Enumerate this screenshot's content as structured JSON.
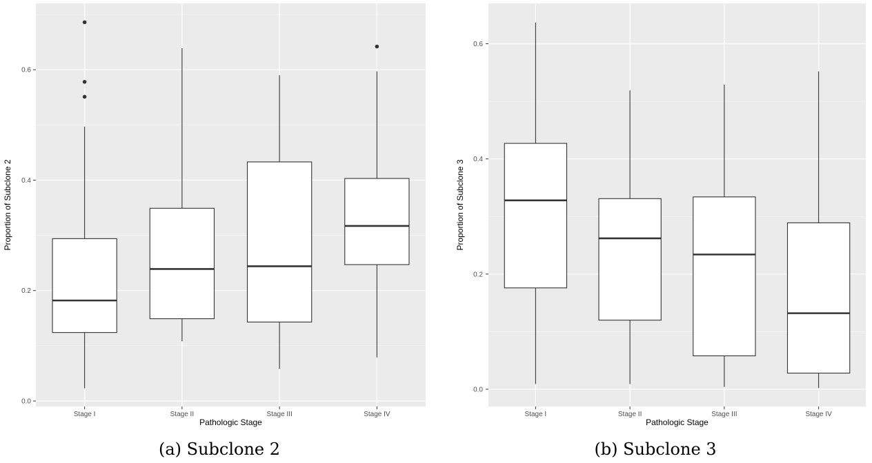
{
  "colors": {
    "panel_background": "#ebebeb",
    "grid_major": "#ffffff",
    "box_fill": "#ffffff",
    "box_stroke": "#333333",
    "tick_text": "#4d4d4d"
  },
  "chart_data": [
    {
      "type": "boxplot",
      "caption": "(a) Subclone 2",
      "xlabel": "Pathologic Stage",
      "ylabel": "Proportion of Subclone 2",
      "categories": [
        "Stage I",
        "Stage II",
        "Stage III",
        "Stage IV"
      ],
      "ylim": [
        -0.01,
        0.72
      ],
      "yticks": [
        0.0,
        0.2,
        0.4,
        0.6
      ],
      "ytick_labels": [
        "0.0",
        "0.2",
        "0.4",
        "0.6"
      ],
      "grid": true,
      "boxes": [
        {
          "category": "Stage I",
          "whisker_low": 0.023,
          "q1": 0.124,
          "median": 0.182,
          "q3": 0.294,
          "whisker_high": 0.497,
          "outliers": [
            0.551,
            0.578,
            0.686
          ]
        },
        {
          "category": "Stage II",
          "whisker_low": 0.108,
          "q1": 0.149,
          "median": 0.239,
          "q3": 0.349,
          "whisker_high": 0.639,
          "outliers": []
        },
        {
          "category": "Stage III",
          "whisker_low": 0.058,
          "q1": 0.143,
          "median": 0.244,
          "q3": 0.433,
          "whisker_high": 0.59,
          "outliers": []
        },
        {
          "category": "Stage IV",
          "whisker_low": 0.079,
          "q1": 0.247,
          "median": 0.317,
          "q3": 0.403,
          "whisker_high": 0.597,
          "outliers": [
            0.642
          ]
        }
      ]
    },
    {
      "type": "boxplot",
      "caption": "(b) Subclone 3",
      "xlabel": "Pathologic Stage",
      "ylabel": "Proportion of Subclone 3",
      "categories": [
        "Stage I",
        "Stage II",
        "Stage III",
        "Stage IV"
      ],
      "ylim": [
        -0.03,
        0.67
      ],
      "yticks": [
        0.0,
        0.2,
        0.4,
        0.6
      ],
      "ytick_labels": [
        "0.0",
        "0.2",
        "0.4",
        "0.6"
      ],
      "grid": true,
      "boxes": [
        {
          "category": "Stage I",
          "whisker_low": 0.009,
          "q1": 0.176,
          "median": 0.328,
          "q3": 0.427,
          "whisker_high": 0.637,
          "outliers": []
        },
        {
          "category": "Stage II",
          "whisker_low": 0.009,
          "q1": 0.12,
          "median": 0.262,
          "q3": 0.331,
          "whisker_high": 0.519,
          "outliers": []
        },
        {
          "category": "Stage III",
          "whisker_low": 0.004,
          "q1": 0.058,
          "median": 0.234,
          "q3": 0.334,
          "whisker_high": 0.529,
          "outliers": []
        },
        {
          "category": "Stage IV",
          "whisker_low": 0.002,
          "q1": 0.028,
          "median": 0.132,
          "q3": 0.289,
          "whisker_high": 0.552,
          "outliers": []
        }
      ]
    }
  ]
}
